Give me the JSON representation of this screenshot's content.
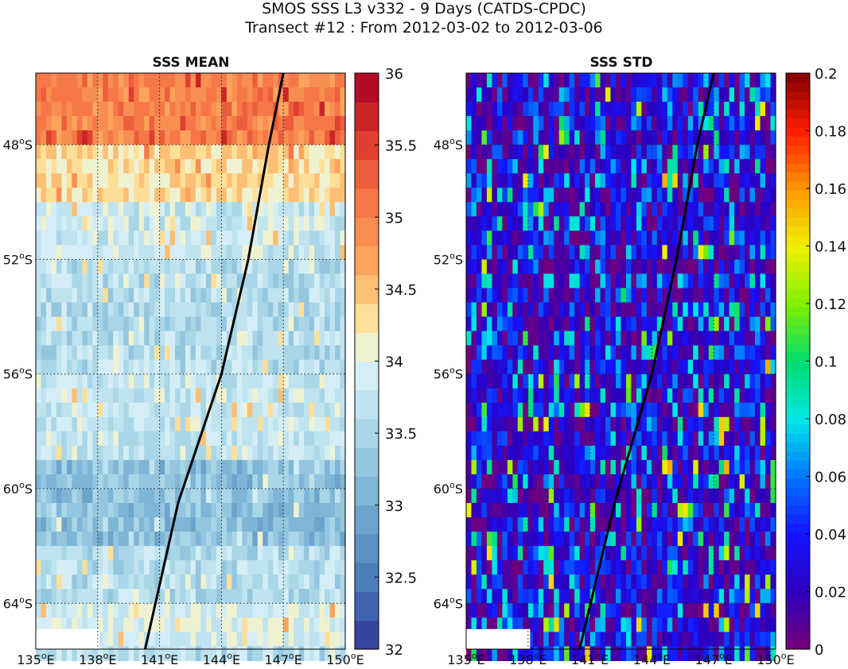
{
  "title_line1": "SMOS SSS L3 v332 - 9 Days (CATDS-CPDC)",
  "title_line2": "Transect #12 : From 2012-03-02 to 2012-03-06",
  "chart_data": [
    {
      "type": "heatmap",
      "title": "SSS MEAN",
      "xlim": [
        135,
        150
      ],
      "ylim": [
        -65.6,
        -45.5
      ],
      "x_ticks": [
        {
          "value": 135,
          "label": "135"
        },
        {
          "value": 138,
          "label": "138"
        },
        {
          "value": 141,
          "label": "141"
        },
        {
          "value": 144,
          "label": "144"
        },
        {
          "value": 147,
          "label": "147"
        },
        {
          "value": 150,
          "label": "150"
        }
      ],
      "x_suffix": "E",
      "y_ticks": [
        {
          "value": -48,
          "label": "48"
        },
        {
          "value": -52,
          "label": "52"
        },
        {
          "value": -56,
          "label": "56"
        },
        {
          "value": -60,
          "label": "60"
        },
        {
          "value": -64,
          "label": "64"
        }
      ],
      "y_suffix": "S",
      "grid": true,
      "colorbar": {
        "min": 32,
        "max": 36,
        "levels": 20,
        "ticks": [
          "32",
          "32.5",
          "33",
          "33.5",
          "34",
          "34.5",
          "35",
          "35.5",
          "36"
        ]
      },
      "row_means": [
        {
          "lat_from": -45.5,
          "lat_to": -48.0,
          "mean": 35.0
        },
        {
          "lat_from": -48.0,
          "lat_to": -50.0,
          "mean": 34.3
        },
        {
          "lat_from": -50.0,
          "lat_to": -52.0,
          "mean": 33.8
        },
        {
          "lat_from": -52.0,
          "lat_to": -56.0,
          "mean": 33.6
        },
        {
          "lat_from": -56.0,
          "lat_to": -59.0,
          "mean": 33.75
        },
        {
          "lat_from": -59.0,
          "lat_to": -62.0,
          "mean": 33.25
        },
        {
          "lat_from": -62.0,
          "lat_to": -64.0,
          "mean": 33.6
        },
        {
          "lat_from": -64.0,
          "lat_to": -65.6,
          "mean": 33.9
        }
      ],
      "transect": [
        {
          "lon": 140.3,
          "lat": -65.6
        },
        {
          "lon": 141.9,
          "lat": -60.5
        },
        {
          "lon": 144.0,
          "lat": -56.0
        },
        {
          "lon": 145.3,
          "lat": -52.0
        },
        {
          "lon": 146.3,
          "lat": -48.0
        },
        {
          "lon": 147.0,
          "lat": -45.5
        }
      ]
    },
    {
      "type": "heatmap",
      "title": "SSS STD",
      "xlim": [
        135,
        150
      ],
      "ylim": [
        -65.6,
        -45.5
      ],
      "x_ticks": [
        {
          "value": 135,
          "label": "135"
        },
        {
          "value": 138,
          "label": "138"
        },
        {
          "value": 141,
          "label": "141"
        },
        {
          "value": 144,
          "label": "144"
        },
        {
          "value": 147,
          "label": "147"
        },
        {
          "value": 150,
          "label": "150"
        }
      ],
      "x_suffix": "E",
      "y_ticks": [
        {
          "value": -48,
          "label": "48"
        },
        {
          "value": -52,
          "label": "52"
        },
        {
          "value": -56,
          "label": "56"
        },
        {
          "value": -60,
          "label": "60"
        },
        {
          "value": -64,
          "label": "64"
        }
      ],
      "y_suffix": "S",
      "grid": true,
      "colorbar": {
        "min": 0,
        "max": 0.2,
        "levels": 64,
        "ticks": [
          "0",
          "0.02",
          "0.04",
          "0.06",
          "0.08",
          "0.1",
          "0.12",
          "0.14",
          "0.16",
          "0.18",
          "0.2"
        ]
      },
      "typical_range": [
        0.0,
        0.1
      ],
      "transect": [
        {
          "lon": 140.5,
          "lat": -65.6
        },
        {
          "lon": 142.2,
          "lat": -60.5
        },
        {
          "lon": 144.0,
          "lat": -56.0
        },
        {
          "lon": 145.2,
          "lat": -52.0
        },
        {
          "lon": 146.2,
          "lat": -48.0
        },
        {
          "lon": 147.0,
          "lat": -45.5
        }
      ]
    }
  ]
}
